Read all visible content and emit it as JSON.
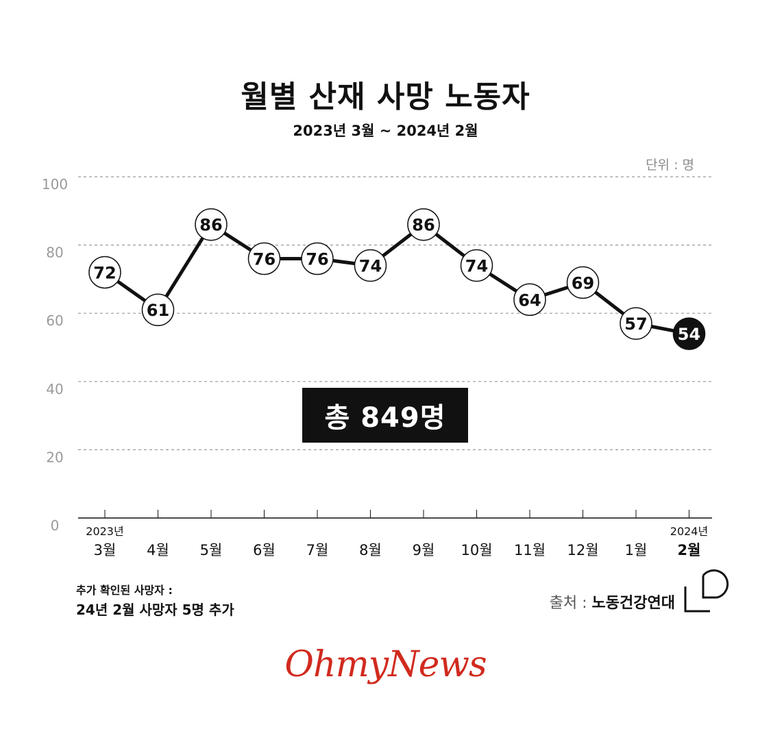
{
  "header": {
    "title": "월별 산재 사망 노동자",
    "subtitle": "2023년 3월 ~ 2024년 2월",
    "unit": "단위 : 명"
  },
  "total_label": "총 849명",
  "year_labels": {
    "start": "2023년",
    "end": "2024년"
  },
  "note": {
    "title": "추가 확인된 사망자 :",
    "text": "24년 2월 사망자 5명 추가"
  },
  "source": {
    "prefix": "출처 : ",
    "name": "노동건강연대"
  },
  "brand": "OhmyNews",
  "colors": {
    "line": "#111111",
    "grid": "#999999",
    "axis_text": "#9a9a9a",
    "brand": "#d12a1e",
    "highlight": "#111111"
  },
  "chart_data": {
    "type": "line",
    "title": "월별 산재 사망 노동자",
    "subtitle": "2023년 3월 ~ 2024년 2월",
    "categories": [
      "3월",
      "4월",
      "5월",
      "6월",
      "7월",
      "8월",
      "9월",
      "10월",
      "11월",
      "12월",
      "1월",
      "2월"
    ],
    "series": [
      {
        "values": [
          72,
          61,
          86,
          76,
          76,
          74,
          86,
          74,
          64,
          69,
          57,
          54
        ]
      }
    ],
    "ylim": [
      0,
      100
    ],
    "yticks": [
      0,
      20,
      40,
      60,
      80,
      100
    ],
    "highlight_index": 11,
    "grid": true,
    "grid_style": "dashed",
    "ylabel": "",
    "xlabel": ""
  }
}
